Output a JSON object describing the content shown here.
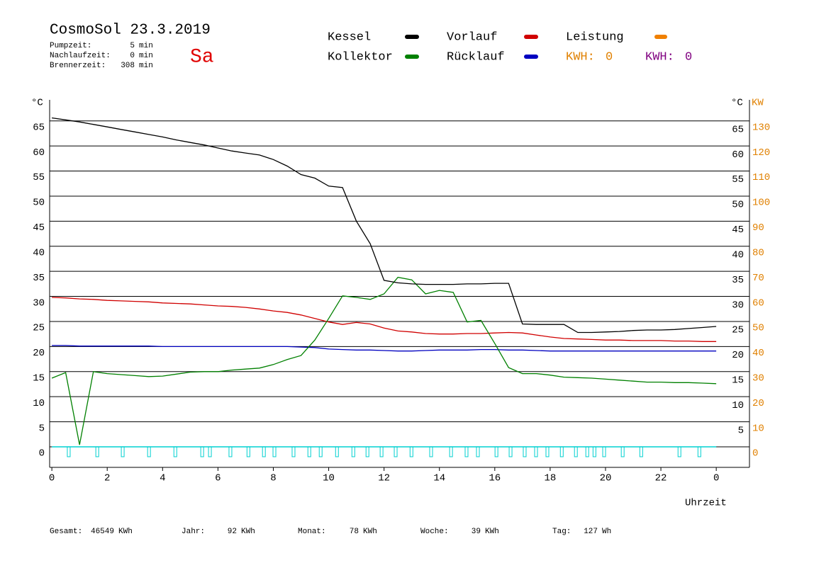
{
  "chart_data": {
    "type": "line",
    "title": "CosmoSol 23.3.2019",
    "day": "Sa",
    "info": [
      {
        "label": "Pumpzeit:",
        "value": 5,
        "unit": "min"
      },
      {
        "label": "Nachlaufzeit:",
        "value": 0,
        "unit": "min"
      },
      {
        "label": "Brennerzeit:",
        "value": 308,
        "unit": "min"
      }
    ],
    "y_unit_left": "°C",
    "y_unit_right": "°C",
    "y2_unit": "KW",
    "x_label": "Uhrzeit",
    "xlim": [
      -0.08,
      25.2
    ],
    "xticks": [
      0,
      2,
      4,
      6,
      8,
      10,
      12,
      14,
      16,
      18,
      20,
      22,
      {
        "value": 24,
        "label": "0"
      }
    ],
    "ylim": [
      -4.1,
      69.2
    ],
    "yticks": [
      0,
      5,
      10,
      15,
      20,
      25,
      30,
      35,
      40,
      45,
      50,
      55,
      60,
      65
    ],
    "y_right_ticks": [
      5,
      10,
      15,
      20,
      25,
      30,
      35,
      40,
      45,
      50,
      55,
      60,
      65
    ],
    "y2lim": [
      -8.2,
      138.4
    ],
    "y2ticks": [
      0,
      10,
      20,
      30,
      40,
      50,
      60,
      70,
      80,
      90,
      100,
      110,
      120,
      130
    ],
    "grid": true,
    "x": [
      0,
      0.5,
      1,
      1.5,
      2,
      2.5,
      3,
      3.5,
      4,
      4.5,
      5,
      5.5,
      6,
      6.5,
      7,
      7.5,
      8,
      8.5,
      9,
      9.5,
      10,
      10.5,
      11,
      11.5,
      12,
      12.5,
      13,
      13.5,
      14,
      14.5,
      15,
      15.5,
      16,
      16.5,
      17,
      17.5,
      18,
      18.5,
      19,
      19.5,
      20,
      20.5,
      21,
      21.5,
      22,
      22.5,
      23,
      23.5,
      24
    ],
    "series": [
      {
        "name": "Kessel",
        "color": "#000000",
        "values": [
          65.6,
          65.2,
          64.8,
          64.3,
          63.8,
          63.3,
          62.8,
          62.3,
          61.8,
          61.2,
          60.7,
          60.2,
          59.6,
          59.0,
          58.6,
          58.2,
          57.3,
          56,
          54.3,
          53.6,
          52.0,
          51.7,
          45,
          40.5,
          33.2,
          32.7,
          32.5,
          32.4,
          32.4,
          32.4,
          32.5,
          32.5,
          32.6,
          32.6,
          24.5,
          24.4,
          24.4,
          24.4,
          22.8,
          22.8,
          22.9,
          23.0,
          23.2,
          23.3,
          23.3,
          23.4,
          23.6,
          23.8,
          24.0
        ]
      },
      {
        "name": "Kollektor",
        "color": "#008000",
        "values": [
          13.7,
          14.8,
          0.4,
          15.0,
          14.6,
          14.4,
          14.2,
          14.0,
          14.1,
          14.5,
          14.9,
          15.0,
          15.0,
          15.3,
          15.5,
          15.7,
          16.4,
          17.4,
          18.2,
          21.3,
          25.6,
          30.1,
          29.8,
          29.4,
          30.5,
          33.8,
          33.3,
          30.5,
          31.2,
          30.8,
          24.9,
          25.2,
          20.6,
          15.8,
          14.6,
          14.6,
          14.3,
          13.9,
          13.8,
          13.7,
          13.5,
          13.3,
          13.1,
          12.9,
          12.9,
          12.8,
          12.8,
          12.7,
          12.6
        ]
      },
      {
        "name": "Vorlauf",
        "color": "#d00000",
        "values": [
          29.8,
          29.7,
          29.5,
          29.4,
          29.2,
          29.1,
          29,
          28.9,
          28.7,
          28.6,
          28.5,
          28.3,
          28.1,
          28,
          27.8,
          27.5,
          27.1,
          26.8,
          26.3,
          25.6,
          24.9,
          24.4,
          24.8,
          24.5,
          23.7,
          23.1,
          22.9,
          22.6,
          22.5,
          22.5,
          22.6,
          22.6,
          22.7,
          22.8,
          22.7,
          22.3,
          21.9,
          21.6,
          21.5,
          21.4,
          21.3,
          21.3,
          21.2,
          21.2,
          21.2,
          21.1,
          21.1,
          21.0,
          21.0
        ]
      },
      {
        "name": "Rücklauf",
        "color": "#0000c0",
        "values": [
          20.2,
          20.2,
          20.1,
          20.1,
          20.1,
          20.1,
          20.1,
          20.1,
          20.0,
          20.0,
          20.0,
          20.0,
          20.0,
          20.0,
          20.0,
          20.0,
          20.0,
          20.0,
          19.9,
          19.8,
          19.5,
          19.4,
          19.3,
          19.3,
          19.2,
          19.1,
          19.1,
          19.2,
          19.3,
          19.3,
          19.3,
          19.4,
          19.4,
          19.3,
          19.3,
          19.2,
          19.1,
          19.1,
          19.1,
          19.1,
          19.1,
          19.1,
          19.1,
          19.1,
          19.1,
          19.1,
          19.1,
          19.1,
          19.1
        ]
      }
    ],
    "legend_extra": [
      {
        "name": "Leistung",
        "color": "#f08000"
      }
    ],
    "kwh": [
      {
        "label": "KWH:",
        "value": 0,
        "color": "#e08000"
      },
      {
        "label": "KWH:",
        "value": 0,
        "color": "#800080"
      }
    ],
    "pulses": {
      "color": "#00d0d0",
      "x": [
        0.61,
        1.64,
        2.56,
        3.51,
        4.46,
        5.43,
        5.71,
        6.45,
        7.1,
        7.66,
        8.04,
        8.73,
        9.3,
        9.71,
        10.3,
        10.89,
        11.4,
        11.91,
        12.42,
        12.99,
        13.7,
        14.42,
        14.98,
        15.39,
        16.06,
        16.57,
        17.08,
        17.49,
        17.9,
        18.42,
        18.93,
        19.34,
        19.6,
        19.95,
        20.62,
        21.29,
        22.67,
        23.39
      ]
    },
    "footer": [
      {
        "label": "Gesamt:",
        "value": 46549,
        "unit": "KWh"
      },
      {
        "label": "Jahr:",
        "value": 92,
        "unit": "KWh"
      },
      {
        "label": "Monat:",
        "value": 78,
        "unit": "KWh"
      },
      {
        "label": "Woche:",
        "value": 39,
        "unit": "KWh"
      },
      {
        "label": "Tag:",
        "value": 127,
        "unit": "Wh"
      }
    ]
  }
}
